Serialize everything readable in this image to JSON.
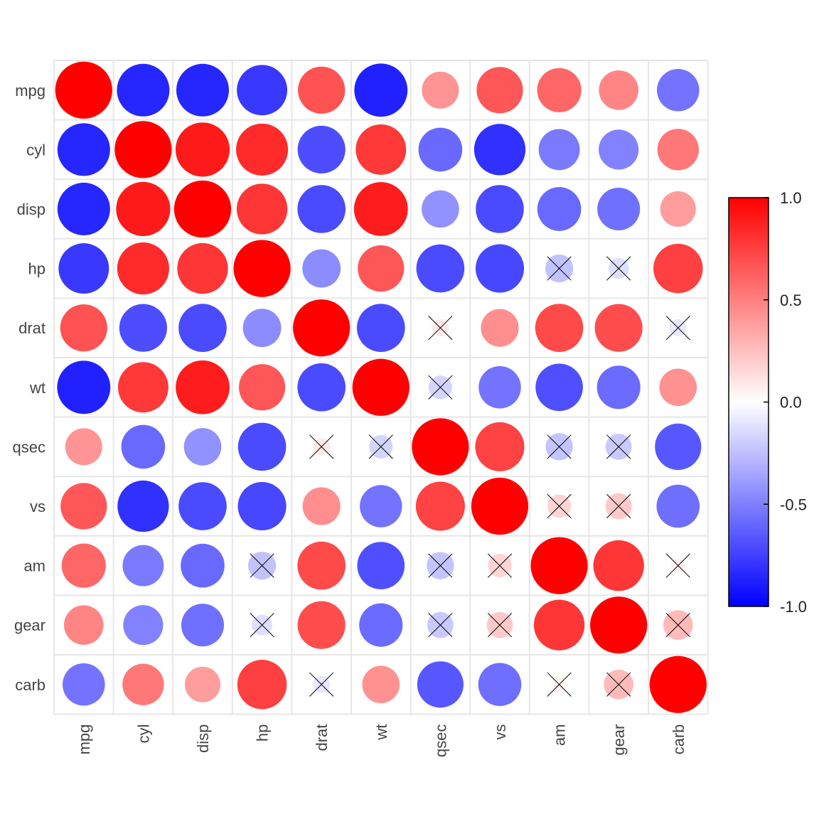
{
  "chart_data": {
    "type": "heatmap",
    "style": "correlation-circles",
    "variables": [
      "mpg",
      "cyl",
      "disp",
      "hp",
      "drat",
      "wt",
      "qsec",
      "vs",
      "am",
      "gear",
      "carb"
    ],
    "matrix": [
      [
        1.0,
        -0.85,
        -0.85,
        -0.78,
        0.68,
        -0.87,
        0.42,
        0.66,
        0.6,
        0.48,
        -0.55
      ],
      [
        -0.85,
        1.0,
        0.9,
        0.83,
        -0.7,
        0.78,
        -0.59,
        -0.81,
        -0.52,
        -0.49,
        0.53
      ],
      [
        -0.85,
        0.9,
        1.0,
        0.79,
        -0.71,
        0.89,
        -0.43,
        -0.71,
        -0.59,
        -0.56,
        0.39
      ],
      [
        -0.78,
        0.83,
        0.79,
        1.0,
        -0.45,
        0.66,
        -0.71,
        -0.72,
        -0.24,
        -0.13,
        0.75
      ],
      [
        0.68,
        -0.7,
        -0.71,
        -0.45,
        1.0,
        -0.71,
        0.09,
        0.44,
        0.71,
        0.7,
        -0.09
      ],
      [
        -0.87,
        0.78,
        0.89,
        0.66,
        -0.71,
        1.0,
        -0.17,
        -0.55,
        -0.69,
        -0.58,
        0.43
      ],
      [
        0.42,
        -0.59,
        -0.43,
        -0.71,
        0.09,
        -0.17,
        1.0,
        0.74,
        -0.23,
        -0.21,
        -0.66
      ],
      [
        0.66,
        -0.81,
        -0.71,
        -0.72,
        0.44,
        -0.55,
        0.74,
        1.0,
        0.17,
        0.21,
        -0.57
      ],
      [
        0.6,
        -0.52,
        -0.59,
        -0.24,
        0.71,
        -0.69,
        -0.23,
        0.17,
        1.0,
        0.79,
        0.06
      ],
      [
        0.48,
        -0.49,
        -0.56,
        -0.13,
        0.7,
        -0.58,
        -0.21,
        0.21,
        0.79,
        1.0,
        0.27
      ],
      [
        -0.55,
        0.53,
        0.39,
        0.75,
        -0.09,
        0.43,
        -0.66,
        -0.57,
        0.06,
        0.27,
        1.0
      ]
    ],
    "insignificant": [
      [
        3,
        8
      ],
      [
        3,
        9
      ],
      [
        4,
        6
      ],
      [
        4,
        10
      ],
      [
        5,
        6
      ],
      [
        6,
        4
      ],
      [
        6,
        5
      ],
      [
        6,
        8
      ],
      [
        6,
        9
      ],
      [
        7,
        8
      ],
      [
        7,
        9
      ],
      [
        8,
        3
      ],
      [
        8,
        6
      ],
      [
        8,
        7
      ],
      [
        8,
        10
      ],
      [
        9,
        3
      ],
      [
        9,
        6
      ],
      [
        9,
        7
      ],
      [
        9,
        10
      ],
      [
        10,
        4
      ],
      [
        10,
        8
      ],
      [
        10,
        9
      ]
    ],
    "color_scale": {
      "low": "#0000ff",
      "mid": "#ffffff",
      "high": "#ff0000"
    },
    "legend": {
      "position": "right",
      "range": [
        -1.0,
        1.0
      ],
      "ticks": [
        "1.0",
        "0.5",
        "0.0",
        "-0.5",
        "-1.0"
      ]
    },
    "grid": true,
    "grid_color": "#e6e6e6",
    "cross_color": "#000000",
    "label_color": "#444444"
  }
}
